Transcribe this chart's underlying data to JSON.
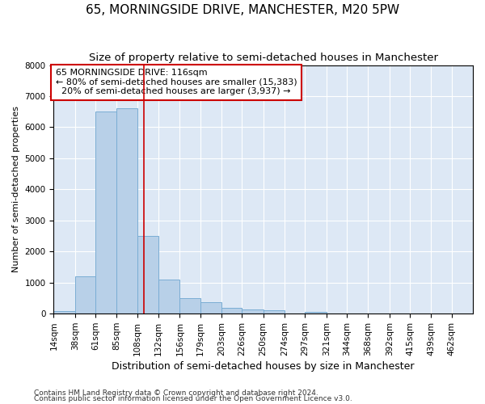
{
  "title": "65, MORNINGSIDE DRIVE, MANCHESTER, M20 5PW",
  "subtitle": "Size of property relative to semi-detached houses in Manchester",
  "xlabel": "Distribution of semi-detached houses by size in Manchester",
  "ylabel": "Number of semi-detached properties",
  "footer_line1": "Contains HM Land Registry data © Crown copyright and database right 2024.",
  "footer_line2": "Contains public sector information licensed under the Open Government Licence v3.0.",
  "annotation_line1": "65 MORNINGSIDE DRIVE: 116sqm",
  "annotation_line2": "← 80% of semi-detached houses are smaller (15,383)",
  "annotation_line3": "20% of semi-detached houses are larger (3,937) →",
  "property_size": 116,
  "bar_color": "#b8d0e8",
  "bar_edge_color": "#7aadd4",
  "red_line_color": "#cc0000",
  "annotation_box_edge": "#cc0000",
  "plot_bg_color": "#dde8f5",
  "grid_color": "#ffffff",
  "bin_edges": [
    14,
    38,
    61,
    85,
    108,
    132,
    156,
    179,
    203,
    226,
    250,
    274,
    297,
    321,
    344,
    368,
    392,
    415,
    439,
    462,
    486
  ],
  "bar_heights": [
    80,
    1200,
    6500,
    6600,
    2500,
    1100,
    500,
    380,
    200,
    130,
    100,
    10,
    50,
    5,
    2,
    2,
    1,
    1,
    1,
    1
  ],
  "ylim": [
    0,
    8000
  ],
  "yticks": [
    0,
    1000,
    2000,
    3000,
    4000,
    5000,
    6000,
    7000,
    8000
  ],
  "title_fontsize": 11,
  "subtitle_fontsize": 9.5,
  "ylabel_fontsize": 8,
  "xlabel_fontsize": 9,
  "tick_fontsize": 7.5,
  "annotation_fontsize": 8,
  "footer_fontsize": 6.5
}
